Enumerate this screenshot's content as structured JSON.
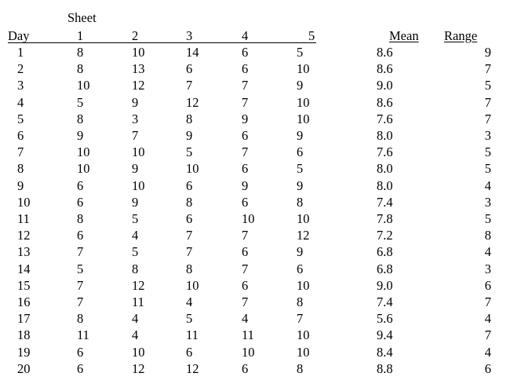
{
  "table": {
    "title": "Sheet",
    "headers": {
      "day": "Day",
      "s1": "1",
      "s2": "2",
      "s3": "3",
      "s4": "4",
      "s5": "5",
      "mean": "Mean",
      "range": "Range"
    },
    "rows": [
      [
        "1",
        "8",
        "10",
        "14",
        "6",
        "5",
        "8.6",
        "9"
      ],
      [
        "2",
        "8",
        "13",
        "6",
        "6",
        "10",
        "8.6",
        "7"
      ],
      [
        "3",
        "10",
        "12",
        "7",
        "7",
        "9",
        "9.0",
        "5"
      ],
      [
        "4",
        "5",
        "9",
        "12",
        "7",
        "10",
        "8.6",
        "7"
      ],
      [
        "5",
        "8",
        "3",
        "8",
        "9",
        "10",
        "7.6",
        "7"
      ],
      [
        "6",
        "9",
        "7",
        "9",
        "6",
        "9",
        "8.0",
        "3"
      ],
      [
        "7",
        "10",
        "10",
        "5",
        "7",
        "6",
        "7.6",
        "5"
      ],
      [
        "8",
        "10",
        "9",
        "10",
        "6",
        "5",
        "8.0",
        "5"
      ],
      [
        "9",
        "6",
        "10",
        "6",
        "9",
        "9",
        "8.0",
        "4"
      ],
      [
        "10",
        "6",
        "9",
        "8",
        "6",
        "8",
        "7.4",
        "3"
      ],
      [
        "11",
        "8",
        "5",
        "6",
        "10",
        "10",
        "7.8",
        "5"
      ],
      [
        "12",
        "6",
        "4",
        "7",
        "7",
        "12",
        "7.2",
        "8"
      ],
      [
        "13",
        "7",
        "5",
        "7",
        "6",
        "9",
        "6.8",
        "4"
      ],
      [
        "14",
        "5",
        "8",
        "8",
        "7",
        "6",
        "6.8",
        "3"
      ],
      [
        "15",
        "7",
        "12",
        "10",
        "6",
        "10",
        "9.0",
        "6"
      ],
      [
        "16",
        "7",
        "11",
        "4",
        "7",
        "8",
        "7.4",
        "7"
      ],
      [
        "17",
        "8",
        "4",
        "5",
        "4",
        "7",
        "5.6",
        "4"
      ],
      [
        "18",
        "11",
        "4",
        "11",
        "11",
        "10",
        "9.4",
        "7"
      ],
      [
        "19",
        "6",
        "10",
        "6",
        "10",
        "10",
        "8.4",
        "4"
      ],
      [
        "20",
        "6",
        "12",
        "12",
        "6",
        "8",
        "8.8",
        "6"
      ]
    ]
  }
}
